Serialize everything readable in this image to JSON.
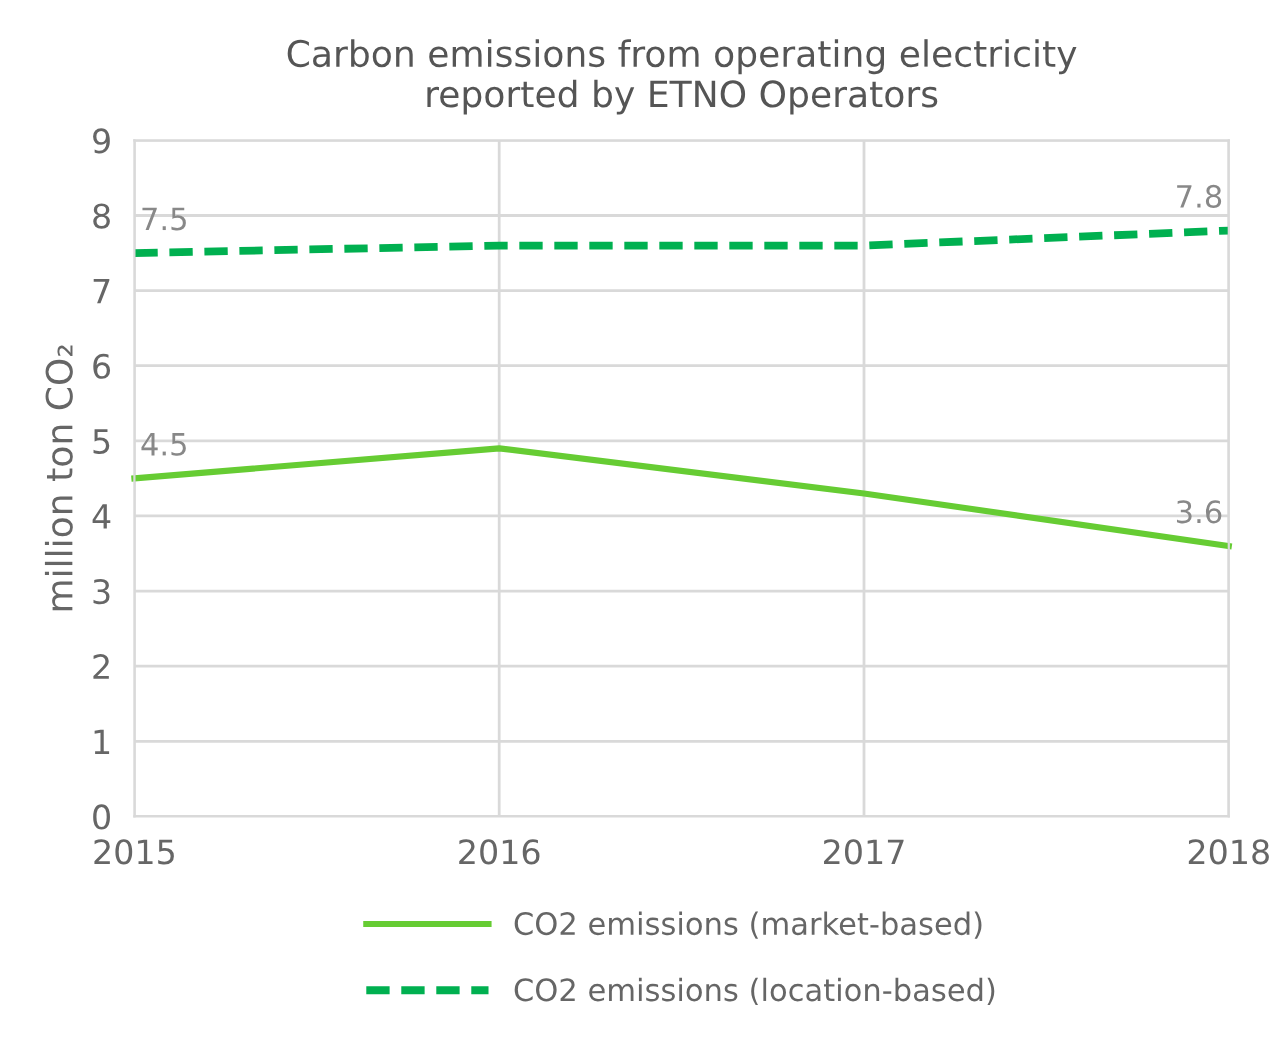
{
  "chart_data": {
    "type": "line",
    "title": "Carbon emissions from operating electricity\nreported by ETNO Operators",
    "ylabel": "million ton CO₂",
    "x": [
      2015,
      2016,
      2017,
      2018
    ],
    "series": [
      {
        "name": "CO2 emissions (market-based)",
        "color": "#66cc33",
        "values": [
          4.5,
          4.9,
          4.3,
          3.6
        ],
        "line_style": "solid",
        "value_labels": [
          "4.5",
          null,
          null,
          "3.6"
        ]
      },
      {
        "name": "CO2 emissions (location-based)",
        "color": "#00b050",
        "values": [
          7.5,
          7.6,
          7.6,
          7.8
        ],
        "line_style": "dashed",
        "value_labels": [
          "7.5",
          null,
          null,
          "7.8"
        ]
      }
    ],
    "xlim": [
      2015,
      2018
    ],
    "xticks": [
      2015,
      2016,
      2017,
      2018
    ],
    "ylim": [
      0,
      9
    ],
    "yticks": [
      0,
      1,
      2,
      3,
      4,
      5,
      6,
      7,
      8,
      9
    ],
    "grid": true,
    "legend": "bottom",
    "marker": "none"
  }
}
